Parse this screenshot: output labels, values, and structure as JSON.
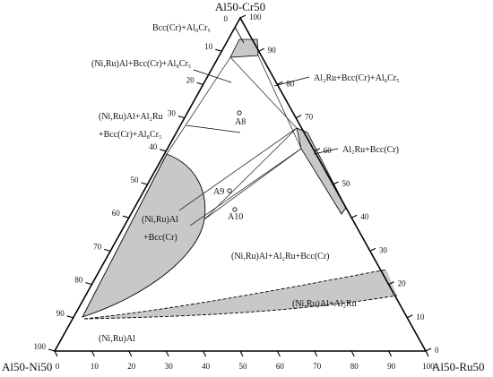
{
  "corners": {
    "top": "Al50-Cr50",
    "left": "Al50-Ni50",
    "right": "Al50-Ru50"
  },
  "bottom_ticks": [
    "0",
    "10",
    "20",
    "30",
    "40",
    "50",
    "60",
    "70",
    "80",
    "90",
    "100"
  ],
  "left_ticks": [
    "10",
    "20",
    "30",
    "40",
    "50",
    "60",
    "70",
    "80",
    "90",
    "100"
  ],
  "right_ticks": [
    "0",
    "10",
    "20",
    "30",
    "40",
    "50",
    "60",
    "70",
    "80",
    "90",
    "100"
  ],
  "left_top_zero": "0",
  "regions": {
    "bcc_al8cr5": "Bcc(Cr)+Al₈Cr₅",
    "niru_bcc_al8cr5": "(Ni,Ru)Al+Bcc(Cr)+Al₈Cr₅",
    "al2ru_bcc_al8cr5": "Al₂Ru+Bcc(Cr)+Al₈Cr₅",
    "niru_al2ru_line1": "(Ni,Ru)Al+Al₂Ru",
    "niru_al2ru_line2": "+Bcc(Cr)+Al₈Cr₅",
    "al2ru_bcc": "Al₂Ru+Bcc(Cr)",
    "niru_bcc_line1": "(Ni,Ru)Al",
    "niru_bcc_line2": "+Bcc(Cr)",
    "niru_al2ru_bcc": "(Ni,Ru)Al+Al₂Ru+Bcc(Cr)",
    "niru_al2ru": "(Ni,Ru)Al+Al₂Ru",
    "niru": "(Ni,Ru)Al"
  },
  "points": {
    "a8": "A8",
    "a9": "A9",
    "a10": "A10"
  },
  "colors": {
    "fill": "#c8c8c8",
    "line": "#000000"
  }
}
